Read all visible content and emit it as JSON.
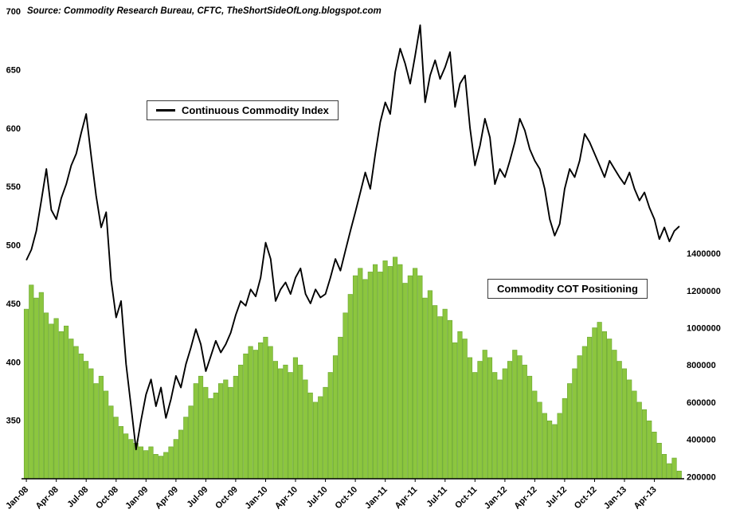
{
  "source_note": "Source: Commodity Research Bureau, CFTC, TheShortSideOfLong.blogspot.com",
  "legend": {
    "cci_label": "Continuous Commodity Index",
    "cot_label": "Commodity COT Positioning"
  },
  "colors": {
    "line": "#000000",
    "bar_fill": "#8CC63F",
    "bar_stroke": "#69A62F",
    "axis": "#000000",
    "background": "#FFFFFF"
  },
  "chart_data": {
    "type": "combo",
    "title": "",
    "x_tick_labels": [
      "Jan-08",
      "Apr-08",
      "Jul-08",
      "Oct-08",
      "Jan-09",
      "Apr-09",
      "Jul-09",
      "Oct-09",
      "Jan-10",
      "Apr-10",
      "Jul-10",
      "Oct-10",
      "Jan-11",
      "Apr-11",
      "Jul-11",
      "Oct-11",
      "Jan-12",
      "Apr-12",
      "Jul-12",
      "Oct-12",
      "Jan-13",
      "Apr-13"
    ],
    "x_tick_every": 6,
    "left_axis": {
      "min": 300,
      "max": 700,
      "ticks": [
        700,
        650,
        600,
        550,
        500,
        450,
        400,
        350
      ],
      "label": ""
    },
    "right_axis": {
      "ticks": [
        1400000,
        1200000,
        1000000,
        800000,
        600000,
        400000,
        200000
      ],
      "label": ""
    },
    "series": [
      {
        "name": "Continuous Commodity Index",
        "type": "line",
        "axis": "left",
        "values": [
          487,
          496,
          512,
          538,
          565,
          530,
          522,
          540,
          552,
          568,
          578,
          596,
          612,
          576,
          542,
          515,
          528,
          470,
          438,
          452,
          398,
          362,
          325,
          350,
          372,
          385,
          362,
          378,
          352,
          368,
          388,
          378,
          398,
          412,
          428,
          415,
          392,
          405,
          418,
          408,
          415,
          425,
          440,
          452,
          448,
          462,
          456,
          472,
          502,
          488,
          452,
          462,
          468,
          458,
          472,
          480,
          458,
          450,
          462,
          455,
          458,
          472,
          488,
          478,
          495,
          512,
          528,
          545,
          562,
          548,
          578,
          605,
          622,
          612,
          648,
          668,
          655,
          638,
          662,
          688,
          622,
          645,
          658,
          642,
          652,
          665,
          618,
          638,
          645,
          600,
          568,
          585,
          608,
          592,
          552,
          565,
          558,
          572,
          588,
          608,
          598,
          582,
          572,
          565,
          548,
          522,
          508,
          518,
          548,
          565,
          558,
          572,
          595,
          588,
          578,
          568,
          558,
          572,
          565,
          558,
          552,
          562,
          548,
          538,
          545,
          532,
          522,
          505,
          515,
          503,
          512,
          516
        ]
      },
      {
        "name": "Commodity COT Positioning",
        "type": "bar",
        "axis": "right",
        "values": [
          1100000,
          1230000,
          1160000,
          1190000,
          1080000,
          1020000,
          1050000,
          980000,
          1010000,
          940000,
          900000,
          860000,
          820000,
          780000,
          700000,
          740000,
          660000,
          580000,
          520000,
          470000,
          430000,
          400000,
          380000,
          360000,
          340000,
          360000,
          320000,
          310000,
          330000,
          360000,
          400000,
          450000,
          520000,
          580000,
          700000,
          740000,
          680000,
          620000,
          650000,
          700000,
          720000,
          680000,
          740000,
          800000,
          860000,
          900000,
          880000,
          920000,
          950000,
          900000,
          820000,
          780000,
          800000,
          760000,
          840000,
          800000,
          720000,
          650000,
          600000,
          630000,
          680000,
          760000,
          850000,
          950000,
          1080000,
          1180000,
          1280000,
          1320000,
          1260000,
          1300000,
          1340000,
          1300000,
          1360000,
          1330000,
          1380000,
          1340000,
          1240000,
          1280000,
          1320000,
          1280000,
          1160000,
          1200000,
          1120000,
          1060000,
          1100000,
          1040000,
          920000,
          980000,
          940000,
          840000,
          760000,
          820000,
          880000,
          840000,
          760000,
          720000,
          780000,
          820000,
          880000,
          850000,
          800000,
          740000,
          660000,
          600000,
          540000,
          500000,
          480000,
          540000,
          620000,
          700000,
          780000,
          850000,
          900000,
          950000,
          1000000,
          1030000,
          980000,
          940000,
          880000,
          820000,
          780000,
          720000,
          660000,
          600000,
          560000,
          500000,
          440000,
          380000,
          320000,
          270000,
          300000,
          230000
        ]
      }
    ]
  }
}
